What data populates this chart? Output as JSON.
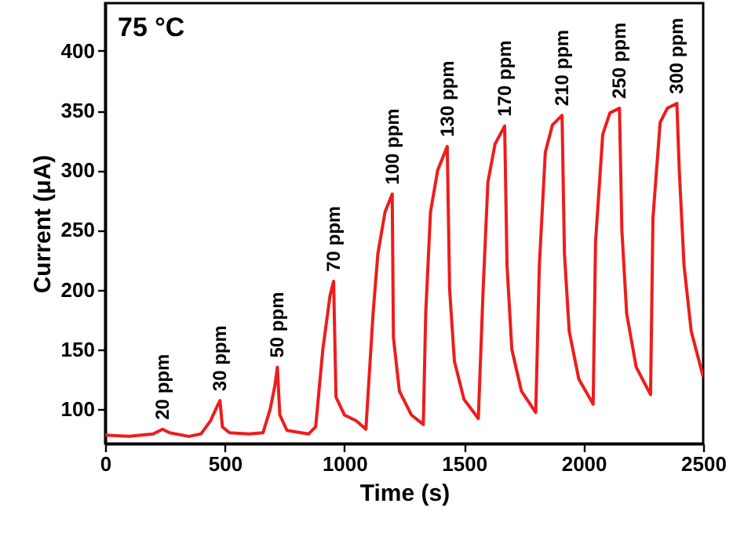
{
  "chart_data": {
    "type": "line",
    "xlabel": "Time (s)",
    "ylabel": "Current (μA)",
    "xlim": [
      0,
      2500
    ],
    "ylim": [
      71,
      440
    ],
    "xticks": [
      0,
      500,
      1000,
      1500,
      2000,
      2500
    ],
    "yticks": [
      100,
      150,
      200,
      250,
      300,
      350,
      400
    ],
    "grid": false,
    "marker": "none",
    "line_style": "solid",
    "annotations": [
      "75 °C",
      {
        "text": "20 ppm",
        "x": 240,
        "y": 83
      },
      {
        "text": "30 ppm",
        "x": 480,
        "y": 107
      },
      {
        "text": "50 ppm",
        "x": 720,
        "y": 135
      },
      {
        "text": "70 ppm",
        "x": 955,
        "y": 207
      },
      {
        "text": "100 ppm",
        "x": 1200,
        "y": 280
      },
      {
        "text": "130 ppm",
        "x": 1430,
        "y": 320
      },
      {
        "text": "170 ppm",
        "x": 1670,
        "y": 337
      },
      {
        "text": "210 ppm",
        "x": 1910,
        "y": 346
      },
      {
        "text": "250 ppm",
        "x": 2150,
        "y": 352
      },
      {
        "text": "300 ppm",
        "x": 2390,
        "y": 356
      }
    ],
    "series": [
      {
        "color": "#ee1c1c",
        "x": [
          0,
          100,
          200,
          240,
          270,
          350,
          400,
          440,
          470,
          480,
          490,
          520,
          600,
          660,
          690,
          710,
          720,
          730,
          760,
          850,
          880,
          910,
          940,
          955,
          965,
          1000,
          1050,
          1090,
          1120,
          1140,
          1170,
          1200,
          1205,
          1230,
          1280,
          1330,
          1340,
          1360,
          1390,
          1430,
          1440,
          1460,
          1500,
          1560,
          1580,
          1600,
          1630,
          1670,
          1680,
          1700,
          1740,
          1800,
          1815,
          1840,
          1870,
          1910,
          1920,
          1940,
          1980,
          2040,
          2050,
          2080,
          2110,
          2150,
          2160,
          2180,
          2220,
          2280,
          2290,
          2320,
          2350,
          2390,
          2400,
          2420,
          2450,
          2500
        ],
        "values": [
          78,
          77,
          79,
          83,
          80,
          77,
          79,
          90,
          103,
          107,
          85,
          80,
          79,
          80,
          100,
          120,
          135,
          95,
          82,
          79,
          85,
          150,
          195,
          207,
          110,
          95,
          90,
          83,
          180,
          230,
          265,
          280,
          160,
          115,
          95,
          87,
          180,
          265,
          300,
          320,
          200,
          140,
          108,
          92,
          200,
          290,
          322,
          337,
          220,
          150,
          115,
          97,
          220,
          315,
          338,
          346,
          230,
          165,
          125,
          104,
          240,
          330,
          348,
          352,
          250,
          180,
          135,
          112,
          260,
          340,
          352,
          356,
          300,
          220,
          165,
          127
        ]
      }
    ]
  }
}
